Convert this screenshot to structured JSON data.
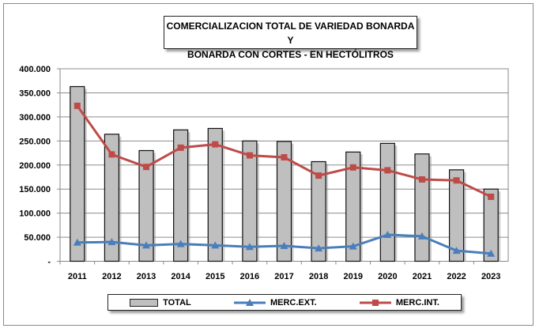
{
  "chart_data": {
    "type": "bar+line",
    "title_lines": [
      "COMERCIALIZACION TOTAL DE VARIEDAD BONARDA Y",
      "BONARDA CON CORTES - EN HECTÓLITROS"
    ],
    "categories": [
      "2011",
      "2012",
      "2013",
      "2014",
      "2015",
      "2016",
      "2017",
      "2018",
      "2019",
      "2020",
      "2021",
      "2022",
      "2023"
    ],
    "series": [
      {
        "name": "TOTAL",
        "type": "bar",
        "color": "#bfbfbf",
        "values": [
          363000,
          264000,
          230000,
          273000,
          276000,
          250000,
          249000,
          207000,
          227000,
          245000,
          223000,
          190000,
          150000
        ]
      },
      {
        "name": "MERC.EXT.",
        "type": "line",
        "color": "#4a7ebb",
        "marker": "triangle",
        "values": [
          39000,
          40000,
          33000,
          36000,
          33000,
          30000,
          32000,
          27000,
          31000,
          55000,
          52000,
          22000,
          16000
        ]
      },
      {
        "name": "MERC.INT.",
        "type": "line",
        "color": "#be4b48",
        "marker": "square",
        "values": [
          323000,
          222000,
          196000,
          236000,
          243000,
          220000,
          216000,
          178000,
          195000,
          189000,
          170000,
          168000,
          134000
        ]
      }
    ],
    "yticks": [
      "-",
      "50.000",
      "100.000",
      "150.000",
      "200.000",
      "250.000",
      "300.000",
      "350.000",
      "400.000"
    ],
    "ylim": [
      0,
      400000
    ],
    "grid": true,
    "legend": "bottom"
  }
}
